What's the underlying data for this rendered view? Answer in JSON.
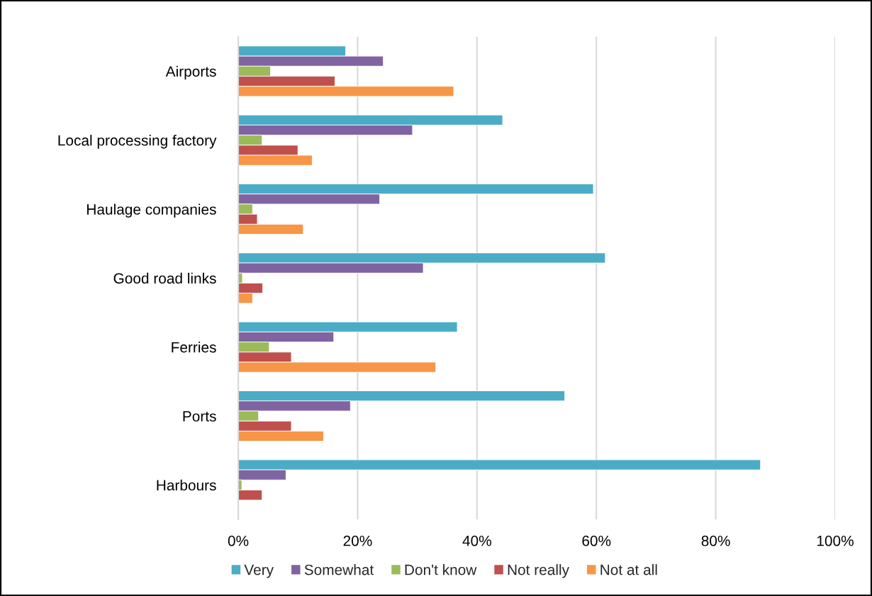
{
  "chart_data": {
    "type": "bar",
    "orientation": "horizontal",
    "categories": [
      "Airports",
      "Local processing factory",
      "Haulage companies",
      "Good road links",
      "Ferries",
      "Ports",
      "Harbours"
    ],
    "series": [
      {
        "name": "Very",
        "color": "#4bacc6",
        "values": [
          18.0,
          44.3,
          59.5,
          61.5,
          36.7,
          54.7,
          87.5
        ]
      },
      {
        "name": "Somewhat",
        "color": "#8064a2",
        "values": [
          24.3,
          29.2,
          23.7,
          31.0,
          16.0,
          18.8,
          8.0
        ]
      },
      {
        "name": "Don't know",
        "color": "#9bbb59",
        "values": [
          5.4,
          4.0,
          2.4,
          0.7,
          5.2,
          3.4,
          0.6
        ]
      },
      {
        "name": "Not really",
        "color": "#c0504d",
        "values": [
          16.2,
          10.0,
          3.2,
          4.1,
          8.9,
          8.9,
          4.0
        ]
      },
      {
        "name": "Not at all",
        "color": "#f79646",
        "values": [
          36.1,
          12.4,
          10.9,
          2.4,
          33.1,
          14.3,
          null
        ]
      }
    ],
    "xlim": [
      0,
      100
    ],
    "xticks": [
      {
        "value": 0,
        "label": "0%"
      },
      {
        "value": 20,
        "label": "20%"
      },
      {
        "value": 40,
        "label": "40%"
      },
      {
        "value": 60,
        "label": "60%"
      },
      {
        "value": 80,
        "label": "80%"
      },
      {
        "value": 100,
        "label": "100%"
      }
    ],
    "grid": "x",
    "legend": "bottom"
  }
}
